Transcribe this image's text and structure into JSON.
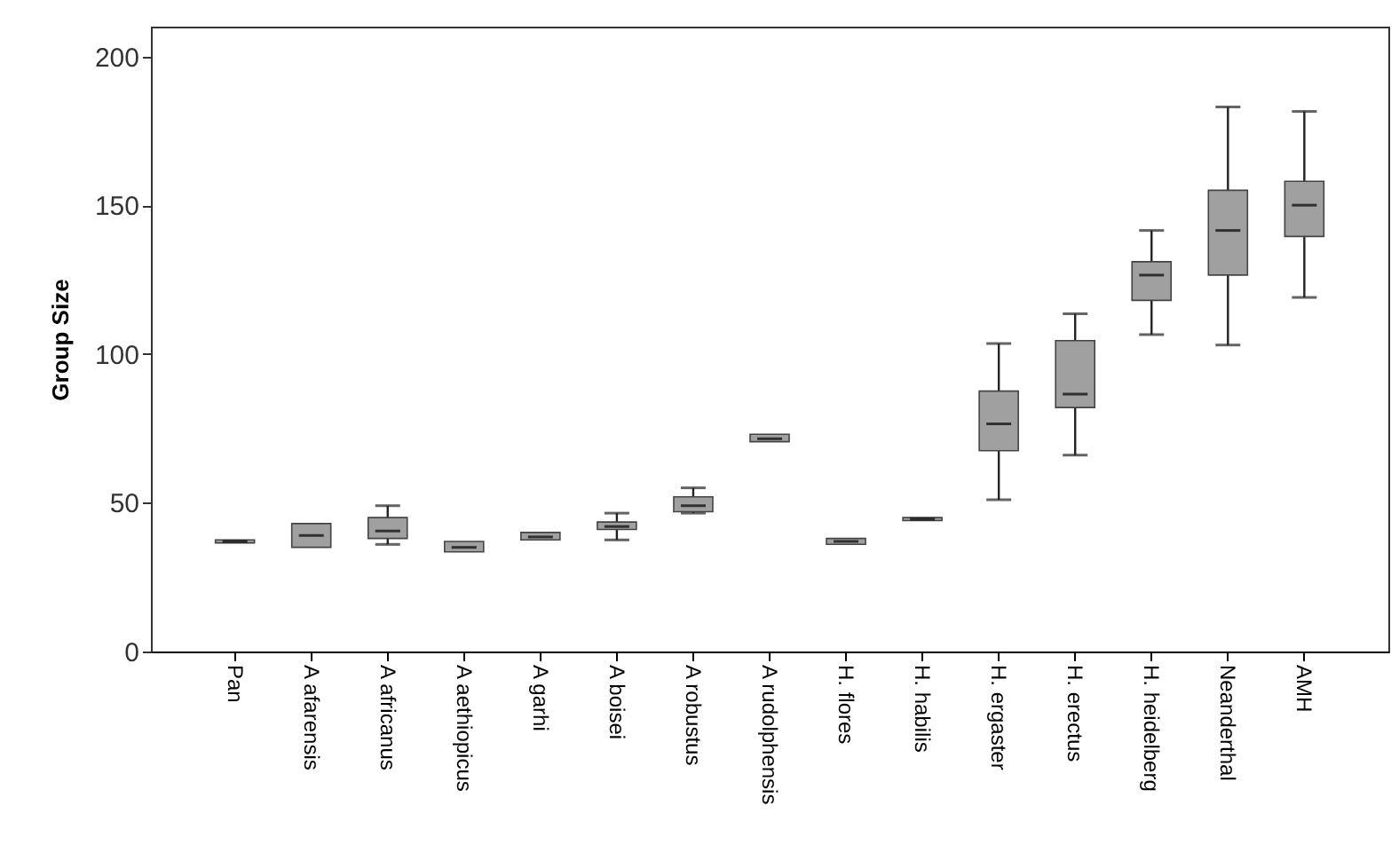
{
  "chart_data": {
    "type": "box",
    "ylabel": "Group Size",
    "categories": [
      "Pan",
      "A  afarensis",
      "A  africanus",
      "A  aethiopicus",
      "A  garhi",
      "A  boisei",
      "A  robustus",
      "A  rudolphensis",
      "H. flores",
      "H. habilis",
      "H. ergaster",
      "H. erectus",
      "H. heidelberg",
      "Neanderthal",
      "AMH"
    ],
    "boxes": [
      {
        "low": 36.5,
        "q1": 36.5,
        "median": 37,
        "q3": 37.5,
        "high": 37.5
      },
      {
        "low": 35,
        "q1": 35,
        "median": 39,
        "q3": 43,
        "high": 43
      },
      {
        "low": 36,
        "q1": 38,
        "median": 40.5,
        "q3": 45,
        "high": 49
      },
      {
        "low": 33.5,
        "q1": 33.5,
        "median": 35,
        "q3": 37,
        "high": 37
      },
      {
        "low": 37.5,
        "q1": 37.5,
        "median": 38.5,
        "q3": 40,
        "high": 40
      },
      {
        "low": 37.5,
        "q1": 41,
        "median": 42,
        "q3": 43.5,
        "high": 46.5
      },
      {
        "low": 46.5,
        "q1": 47,
        "median": 49,
        "q3": 52,
        "high": 55
      },
      {
        "low": 70.5,
        "q1": 70.5,
        "median": 71.5,
        "q3": 73,
        "high": 73
      },
      {
        "low": 36,
        "q1": 36,
        "median": 37,
        "q3": 38,
        "high": 38
      },
      {
        "low": 44,
        "q1": 44,
        "median": 44.5,
        "q3": 45,
        "high": 45
      },
      {
        "low": 51,
        "q1": 67.5,
        "median": 76.5,
        "q3": 87.5,
        "high": 103.5
      },
      {
        "low": 66,
        "q1": 82,
        "median": 86.5,
        "q3": 104.5,
        "high": 113.5
      },
      {
        "low": 106.5,
        "q1": 118,
        "median": 126.5,
        "q3": 131,
        "high": 141.5
      },
      {
        "low": 103,
        "q1": 126.5,
        "median": 141.5,
        "q3": 155,
        "high": 183
      },
      {
        "low": 119,
        "q1": 139.5,
        "median": 150,
        "q3": 158,
        "high": 181.5
      }
    ],
    "color": "#a0a0a0",
    "ylim": [
      0,
      210
    ],
    "yticks": [
      0,
      50,
      100,
      150,
      200
    ],
    "grid": false
  }
}
